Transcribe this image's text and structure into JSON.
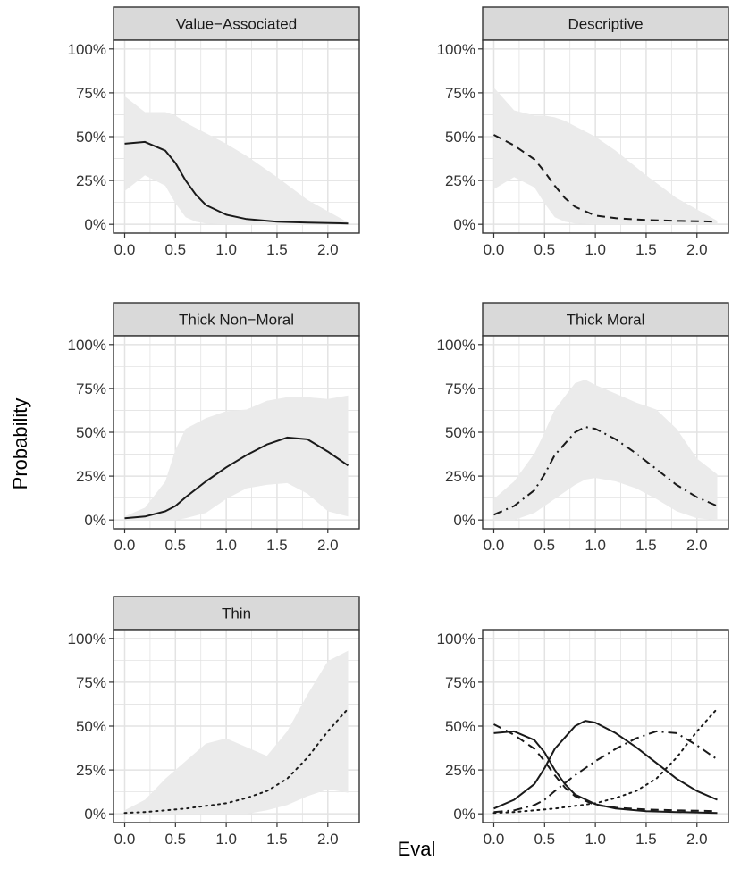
{
  "figure": {
    "xlabel": "Eval",
    "ylabel": "Probability"
  },
  "styles": {
    "band_color": "#ebebeb",
    "grid_color": "#e3e3e3",
    "line_color": "#1a1a1a",
    "strip_fill": "#d9d9d9",
    "panel_border": "#333333"
  },
  "chart_data": [
    {
      "type": "line",
      "title": "Value−Associated",
      "line_style": "solid",
      "xlim": [
        0,
        2.2
      ],
      "ylim": [
        0,
        100
      ],
      "x_ticks": [
        "0.0",
        "0.5",
        "1.0",
        "1.5",
        "2.0"
      ],
      "y_ticks": [
        "0%",
        "25%",
        "50%",
        "75%",
        "100%"
      ],
      "x": [
        0,
        0.2,
        0.4,
        0.5,
        0.6,
        0.7,
        0.8,
        1.0,
        1.2,
        1.5,
        1.8,
        2.2
      ],
      "y": [
        46,
        47,
        42,
        35,
        25,
        17,
        11,
        5.5,
        3,
        1.5,
        1,
        0.5
      ],
      "ci_upper": [
        73,
        64,
        64,
        62,
        58,
        55,
        52,
        46,
        39,
        27,
        14,
        1
      ],
      "ci_lower": [
        19,
        28,
        22,
        12,
        4,
        1.5,
        0.5,
        0,
        0,
        0,
        0,
        0
      ]
    },
    {
      "type": "line",
      "title": "Descriptive",
      "line_style": "dashed",
      "xlim": [
        0,
        2.2
      ],
      "ylim": [
        0,
        100
      ],
      "x_ticks": [
        "0.0",
        "0.5",
        "1.0",
        "1.5",
        "2.0"
      ],
      "y_ticks": [
        "0%",
        "25%",
        "50%",
        "75%",
        "100%"
      ],
      "x": [
        0,
        0.2,
        0.4,
        0.5,
        0.6,
        0.7,
        0.8,
        1.0,
        1.2,
        1.5,
        1.8,
        2.2
      ],
      "y": [
        51,
        45,
        37,
        30,
        22,
        15,
        10,
        5,
        3.5,
        2.5,
        2,
        1.5
      ],
      "ci_upper": [
        78,
        65,
        62,
        62,
        61,
        59,
        56,
        50,
        42,
        28,
        15,
        2
      ],
      "ci_lower": [
        20,
        27,
        21,
        12,
        4,
        1.5,
        0.5,
        0,
        0,
        0,
        0,
        0
      ]
    },
    {
      "type": "line",
      "title": "Thick Non−Moral",
      "line_style": "solid",
      "xlim": [
        0,
        2.2
      ],
      "ylim": [
        0,
        100
      ],
      "x_ticks": [
        "0.0",
        "0.5",
        "1.0",
        "1.5",
        "2.0"
      ],
      "y_ticks": [
        "0%",
        "25%",
        "50%",
        "75%",
        "100%"
      ],
      "x": [
        0,
        0.2,
        0.4,
        0.5,
        0.6,
        0.8,
        1.0,
        1.2,
        1.4,
        1.6,
        1.8,
        2.0,
        2.2
      ],
      "y": [
        1,
        2,
        5,
        8,
        13,
        22,
        30,
        37,
        43,
        47,
        46,
        39,
        31
      ],
      "ci_upper": [
        2,
        7,
        22,
        40,
        52,
        58,
        62,
        63,
        68,
        70,
        70,
        69,
        71
      ],
      "ci_lower": [
        0,
        0,
        0,
        0,
        1,
        4,
        12,
        18,
        20,
        21,
        15,
        5,
        2
      ]
    },
    {
      "type": "line",
      "title": "Thick Moral",
      "line_style": "dashdot",
      "xlim": [
        0,
        2.2
      ],
      "ylim": [
        0,
        100
      ],
      "x_ticks": [
        "0.0",
        "0.5",
        "1.0",
        "1.5",
        "2.0"
      ],
      "y_ticks": [
        "0%",
        "25%",
        "50%",
        "75%",
        "100%"
      ],
      "x": [
        0,
        0.2,
        0.4,
        0.5,
        0.6,
        0.8,
        0.9,
        1.0,
        1.2,
        1.4,
        1.6,
        1.8,
        2.0,
        2.2
      ],
      "y": [
        3,
        8,
        17,
        26,
        37,
        50,
        53,
        52,
        46,
        38,
        29,
        20,
        13,
        8
      ],
      "ci_upper": [
        12,
        22,
        38,
        50,
        63,
        78,
        80,
        77,
        72,
        67,
        63,
        52,
        35,
        26
      ],
      "ci_lower": [
        0,
        0,
        4,
        8,
        12,
        20,
        23,
        24,
        22,
        18,
        12,
        5,
        1,
        0
      ]
    },
    {
      "type": "line",
      "title": "Thin",
      "line_style": "dotted",
      "xlim": [
        0,
        2.2
      ],
      "ylim": [
        0,
        100
      ],
      "x_ticks": [
        "0.0",
        "0.5",
        "1.0",
        "1.5",
        "2.0"
      ],
      "y_ticks": [
        "0%",
        "25%",
        "50%",
        "75%",
        "100%"
      ],
      "x": [
        0,
        0.2,
        0.4,
        0.6,
        0.8,
        1.0,
        1.2,
        1.4,
        1.6,
        1.8,
        2.0,
        2.2
      ],
      "y": [
        0.5,
        1,
        2,
        3,
        4.5,
        6,
        9,
        13,
        20,
        32,
        47,
        60
      ],
      "ci_upper": [
        2,
        8,
        20,
        30,
        40,
        43,
        38,
        33,
        47,
        68,
        87,
        93
      ],
      "ci_lower": [
        0,
        0,
        0,
        0,
        0,
        0,
        0,
        2,
        5,
        10,
        14,
        12
      ]
    },
    {
      "type": "line",
      "title": "",
      "xlim": [
        0,
        2.2
      ],
      "ylim": [
        0,
        100
      ],
      "x_ticks": [
        "0.0",
        "0.5",
        "1.0",
        "1.5",
        "2.0"
      ],
      "y_ticks": [
        "0%",
        "25%",
        "50%",
        "75%",
        "100%"
      ],
      "series": [
        {
          "line_style": "solid",
          "x": [
            0,
            0.2,
            0.4,
            0.5,
            0.6,
            0.7,
            0.8,
            1.0,
            1.2,
            1.5,
            1.8,
            2.2
          ],
          "y": [
            46,
            47,
            42,
            35,
            25,
            17,
            11,
            5.5,
            3,
            1.5,
            1,
            0.5
          ]
        },
        {
          "line_style": "dashed",
          "x": [
            0,
            0.2,
            0.4,
            0.5,
            0.6,
            0.7,
            0.8,
            1.0,
            1.2,
            1.5,
            1.8,
            2.2
          ],
          "y": [
            51,
            45,
            37,
            30,
            22,
            15,
            10,
            5,
            3.5,
            2.5,
            2,
            1.5
          ]
        },
        {
          "line_style": "dashdot",
          "x": [
            0,
            0.2,
            0.4,
            0.5,
            0.6,
            0.8,
            1.0,
            1.2,
            1.4,
            1.6,
            1.8,
            2.0,
            2.2
          ],
          "y": [
            1,
            2,
            5,
            8,
            13,
            22,
            30,
            37,
            43,
            47,
            46,
            39,
            31
          ]
        },
        {
          "line_style": "solid",
          "x": [
            0,
            0.2,
            0.4,
            0.5,
            0.6,
            0.8,
            0.9,
            1.0,
            1.2,
            1.4,
            1.6,
            1.8,
            2.0,
            2.2
          ],
          "y": [
            3,
            8,
            17,
            26,
            37,
            50,
            53,
            52,
            46,
            38,
            29,
            20,
            13,
            8
          ]
        },
        {
          "line_style": "dotted",
          "x": [
            0,
            0.2,
            0.4,
            0.6,
            0.8,
            1.0,
            1.2,
            1.4,
            1.6,
            1.8,
            2.0,
            2.2
          ],
          "y": [
            0.5,
            1,
            2,
            3,
            4.5,
            6,
            9,
            13,
            20,
            32,
            47,
            60
          ]
        }
      ]
    }
  ]
}
